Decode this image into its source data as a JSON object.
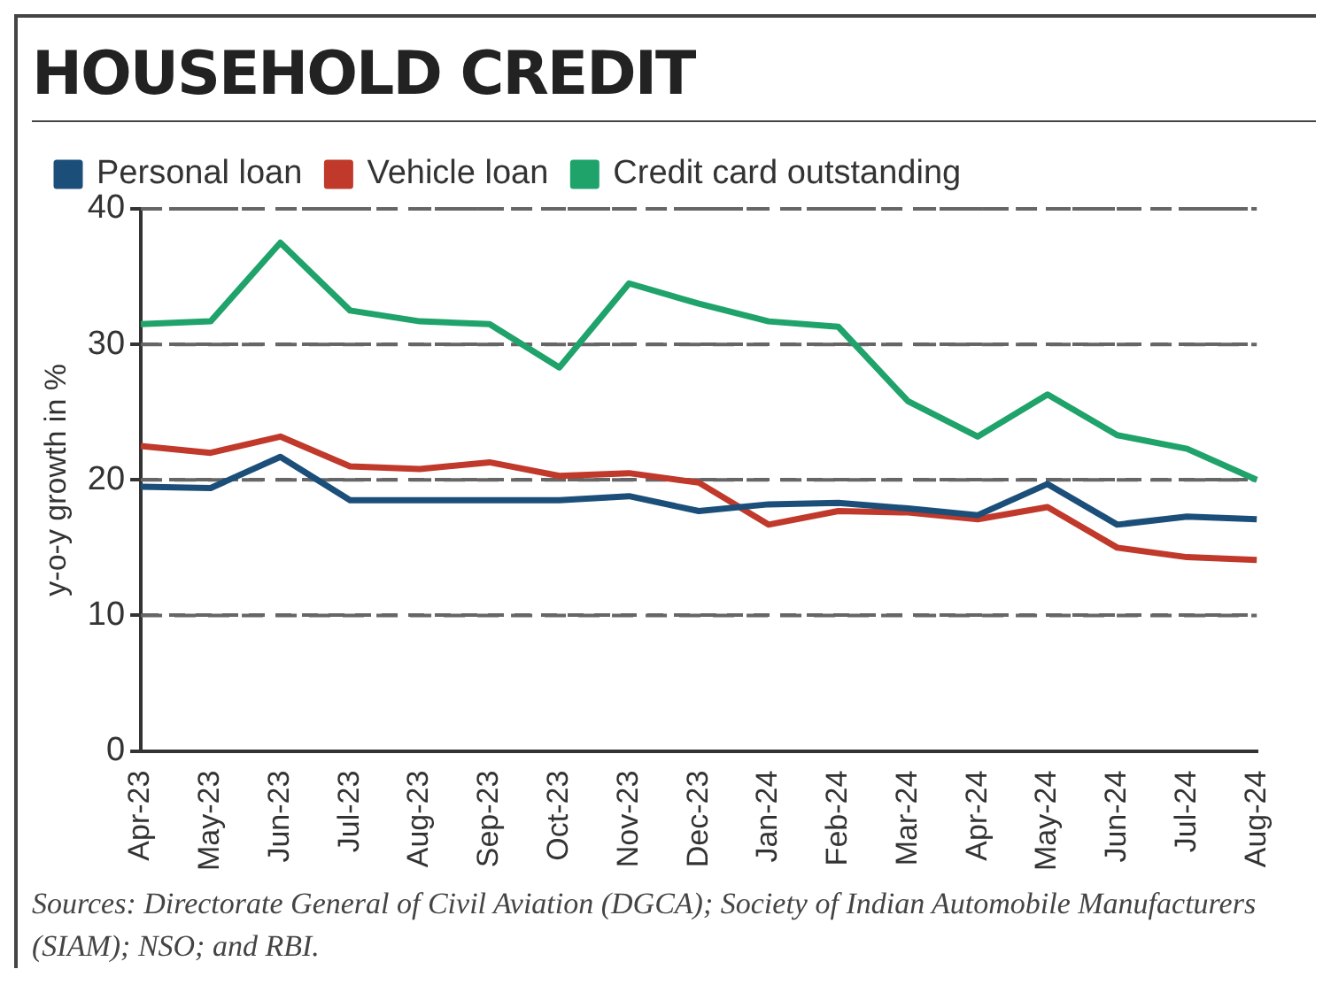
{
  "chart_data": {
    "type": "line",
    "title": "HOUSEHOLD CREDIT",
    "ylabel": "y-o-y growth in %",
    "categories": [
      "Apr-23",
      "May-23",
      "Jun-23",
      "Jul-23",
      "Aug-23",
      "Sep-23",
      "Oct-23",
      "Nov-23",
      "Dec-23",
      "Jan-24",
      "Feb-24",
      "Mar-24",
      "Apr-24",
      "May-24",
      "Jun-24",
      "Jul-24",
      "Aug-24"
    ],
    "series": [
      {
        "name": "Personal loan",
        "color": "#1b4f7a",
        "values": [
          19.5,
          19.4,
          21.7,
          18.5,
          18.5,
          18.5,
          18.5,
          18.8,
          17.7,
          18.2,
          18.3,
          17.9,
          17.4,
          19.7,
          16.7,
          17.3,
          17.1
        ]
      },
      {
        "name": "Vehicle loan",
        "color": "#c0392b",
        "values": [
          22.5,
          22,
          23.2,
          21,
          20.8,
          21.3,
          20.3,
          20.5,
          19.8,
          16.7,
          17.7,
          17.6,
          17.1,
          18,
          15,
          14.3,
          14.1
        ]
      },
      {
        "name": "Credit card outstanding",
        "color": "#1fa36b",
        "values": [
          31.5,
          31.7,
          37.5,
          32.5,
          31.7,
          31.5,
          28.3,
          34.5,
          33,
          31.7,
          31.3,
          25.8,
          23.2,
          26.3,
          23.3,
          22.3,
          20
        ]
      }
    ],
    "ylim": [
      0,
      40
    ],
    "yticks": [
      0,
      10,
      20,
      30,
      40
    ],
    "grid": "y",
    "legend": "top left",
    "marker": "none",
    "line_style": "solid",
    "annotations": [
      "Sources: Directorate General of Civil Aviation (DGCA); Society of Indian Automobile Manufacturers (SIAM); NSO; and RBI."
    ]
  }
}
